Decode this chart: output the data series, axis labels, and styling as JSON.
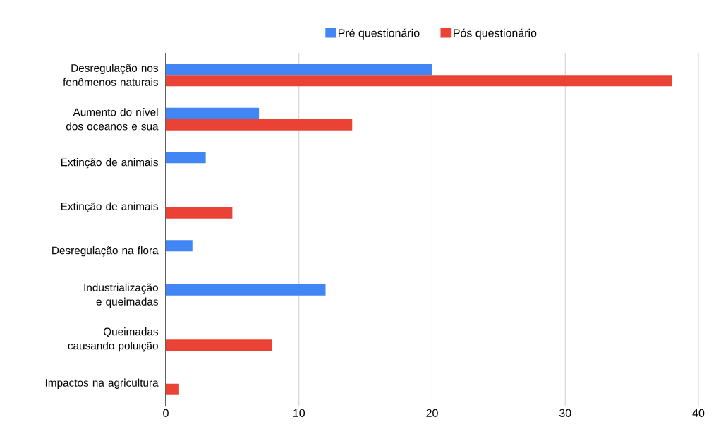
{
  "chart_data": {
    "type": "bar",
    "orientation": "horizontal",
    "categories": [
      "Desregulação nos fenômenos naturais",
      "Aumento do nível dos oceanos e sua",
      "Extinção de animais",
      "Extinção de animais",
      "Desregulação na flora",
      "Industrialização e queimadas",
      "Queimadas causando poluição",
      "Impactos na agricultura"
    ],
    "series": [
      {
        "name": "Pré questionário",
        "color": "#4285f4",
        "values": [
          20,
          7,
          3,
          null,
          2,
          12,
          null,
          null
        ]
      },
      {
        "name": "Pós questionário",
        "color": "#ea4335",
        "values": [
          38,
          14,
          null,
          5,
          null,
          null,
          8,
          1
        ]
      }
    ],
    "xlim": [
      0,
      40
    ],
    "xticks": [
      0,
      10,
      20,
      30,
      40
    ],
    "grid": "x",
    "legend": "top"
  }
}
